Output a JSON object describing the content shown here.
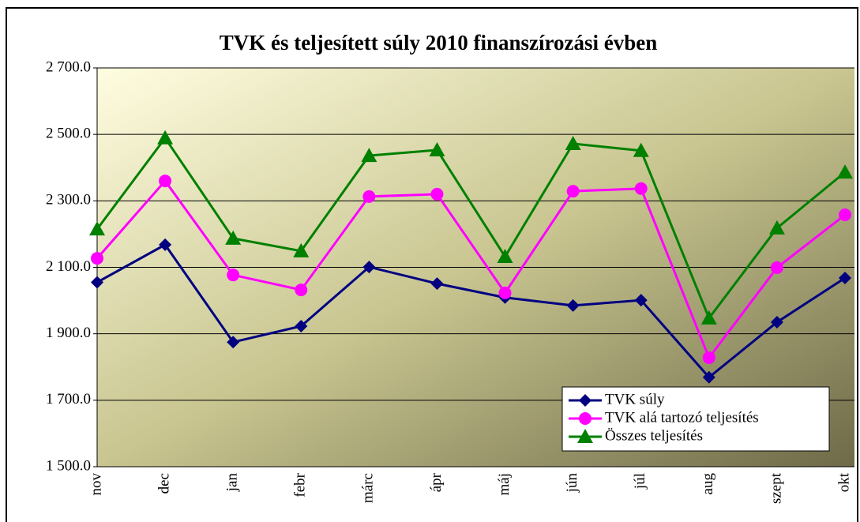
{
  "chart_data": {
    "type": "line",
    "title": "TVK és teljesített súly 2010 finanszírozási évben",
    "categories": [
      "nov",
      "dec",
      "jan",
      "febr",
      "márc",
      "ápr",
      "máj",
      "jún",
      "júl",
      "aug",
      "szept",
      "okt"
    ],
    "series": [
      {
        "name": "TVK súly",
        "color": "#000080",
        "marker": "diamond",
        "values": [
          2055,
          2168,
          1875,
          1923,
          2101,
          2051,
          2009,
          1985,
          2001,
          1769,
          1935,
          2068
        ]
      },
      {
        "name": "TVK alá tartozó teljesítés",
        "color": "#ff00ff",
        "marker": "circle",
        "values": [
          2127,
          2360,
          2077,
          2032,
          2313,
          2320,
          2023,
          2329,
          2337,
          1828,
          2099,
          2258
        ]
      },
      {
        "name": "Összes teljesítés",
        "color": "#008000",
        "marker": "triangle",
        "values": [
          2215,
          2489,
          2187,
          2149,
          2436,
          2453,
          2132,
          2472,
          2451,
          1947,
          2218,
          2386
        ]
      }
    ],
    "ylim": [
      1500,
      2700
    ],
    "yticks": [
      {
        "value": 1500,
        "label": "1 500.0"
      },
      {
        "value": 1700,
        "label": "1 700.0"
      },
      {
        "value": 1900,
        "label": "1 900.0"
      },
      {
        "value": 2100,
        "label": "2 100.0"
      },
      {
        "value": 2300,
        "label": "2 300.0"
      },
      {
        "value": 2500,
        "label": "2 500.0"
      },
      {
        "value": 2700,
        "label": "2 700.0"
      }
    ],
    "grid": true,
    "legend": "lower right"
  }
}
